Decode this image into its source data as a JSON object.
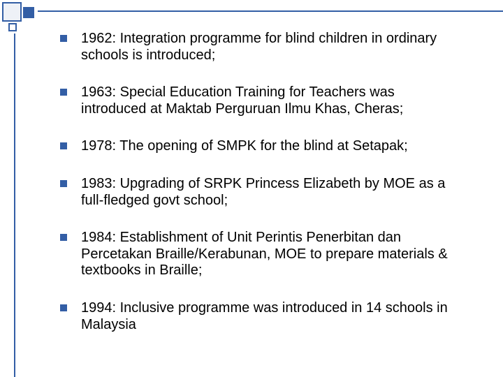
{
  "slide": {
    "accent_color": "#335ea5",
    "text_color": "#000000",
    "background_color": "#ffffff",
    "font_family": "Arial",
    "bullet_fontsize": 20,
    "bullet_marker": {
      "shape": "square",
      "size": 10,
      "color": "#335ea5"
    },
    "bullets": [
      "1962: Integration programme for blind children in ordinary schools is introduced;",
      "1963: Special Education Training for Teachers was introduced at Maktab Perguruan Ilmu Khas, Cheras;",
      "1978: The opening of SMPK for the blind at Setapak;",
      "1983: Upgrading of SRPK Princess Elizabeth by MOE as a full-fledged govt school;",
      "1984: Establishment of  Unit Perintis Penerbitan dan Percetakan Braille/Kerabunan, MOE to prepare materials & textbooks in Braille;",
      "1994: Inclusive programme was introduced in 14 schools in Malaysia"
    ]
  }
}
